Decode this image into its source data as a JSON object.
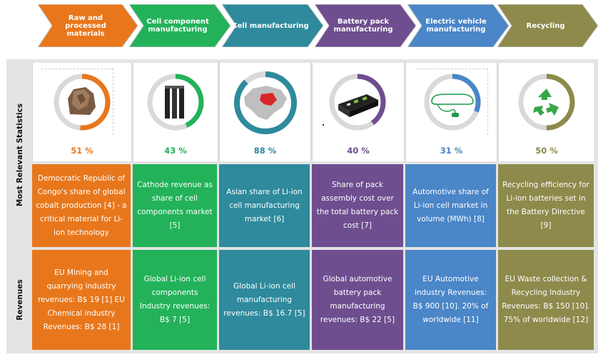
{
  "stages": [
    {
      "label": "Raw and processed materials",
      "color": "#e8771c"
    },
    {
      "label": "Cell component manufacturing",
      "color": "#23b25a"
    },
    {
      "label": "Cell manufacturing",
      "color": "#2e8a9c"
    },
    {
      "label": "Battery pack manufacturing",
      "color": "#6e4e8f"
    },
    {
      "label": "Electric vehicle manufacturing",
      "color": "#4a86c8"
    },
    {
      "label": "Recycling",
      "color": "#8d8a4c"
    }
  ],
  "side_labels": {
    "stats": "Most Relevant Statistics",
    "revenues": "Revenues"
  },
  "stats": [
    {
      "pct": "51 %",
      "value": 0.51,
      "icon": "ore-rock-icon",
      "text": "Democratic Republic of Congo's share of global cobalt production [4] - a critical material for Li-ion technology"
    },
    {
      "pct": "43 %",
      "value": 0.43,
      "icon": "cell-components-icon",
      "text": "Cathode revenue as share of cell components market [5]"
    },
    {
      "pct": "88 %",
      "value": 0.88,
      "icon": "asia-map-icon",
      "text": "Asian share of Li-ion cell manufacturing market [6]"
    },
    {
      "pct": "40 %",
      "value": 0.4,
      "icon": "battery-pack-icon",
      "text": "Share of pack assembly cost over the total battery pack cost [7]"
    },
    {
      "pct": "31 %",
      "value": 0.31,
      "icon": "ev-plug-icon",
      "text": "Automotive share of Li-ion cell market in volume (MWh) [8]"
    },
    {
      "pct": "50 %",
      "value": 0.5,
      "icon": "recycling-icon",
      "text": "Recycling efficiency for Li-ion batteries set in the Battery Directive [9]"
    }
  ],
  "revenues": [
    "EU Mining and quarrying industry revenues: B$ 19 [1] EU Chemical industry Revenues: B$ 28 [1]",
    "Global Li-ion cell components Industry revenues: B$ 7 [5]",
    "Global Li-ion cell manufacturing revenues: B$ 16.7 [5]",
    "Global automotive battery pack manufacturing revenues: B$ 22 [5]",
    "EU Automotive industry Revenues: B$ 900 [10]. 20% of worldwide [11]",
    "EU Waste collection & Recycling Industry Revenues: B$ 150 [10]. 75% of worldwide [12]"
  ]
}
